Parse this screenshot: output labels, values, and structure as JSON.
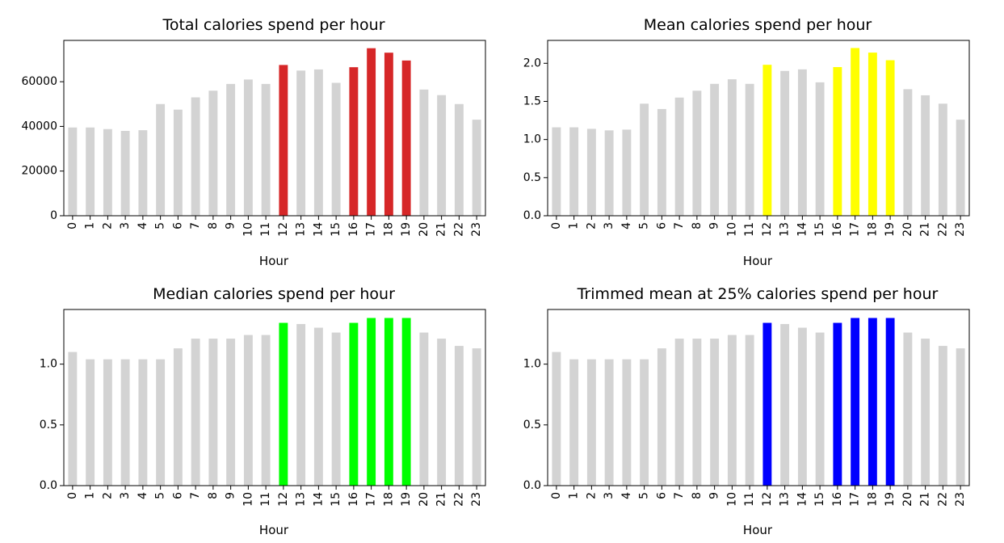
{
  "chart_data": [
    {
      "type": "bar",
      "title": "Total calories spend per hour",
      "xlabel": "Hour",
      "ylabel": "",
      "categories": [
        "0",
        "1",
        "2",
        "3",
        "4",
        "5",
        "6",
        "7",
        "8",
        "9",
        "10",
        "11",
        "12",
        "13",
        "14",
        "15",
        "16",
        "17",
        "18",
        "19",
        "20",
        "21",
        "22",
        "23"
      ],
      "values": [
        39500,
        39500,
        38800,
        38000,
        38300,
        50000,
        47500,
        53000,
        56000,
        59000,
        61000,
        59000,
        67500,
        65000,
        65500,
        59500,
        66500,
        75000,
        73000,
        69500,
        56500,
        54000,
        50000,
        43000
      ],
      "highlight": [
        12,
        16,
        17,
        18,
        19
      ],
      "base_color": "#d3d3d3",
      "highlight_color": "#d62728",
      "ylim": [
        0,
        78500
      ],
      "yticks": [
        0,
        20000,
        40000,
        60000
      ],
      "ytick_labels": [
        "0",
        "20000",
        "40000",
        "60000"
      ]
    },
    {
      "type": "bar",
      "title": "Mean calories spend per hour",
      "xlabel": "Hour",
      "ylabel": "",
      "categories": [
        "0",
        "1",
        "2",
        "3",
        "4",
        "5",
        "6",
        "7",
        "8",
        "9",
        "10",
        "11",
        "12",
        "13",
        "14",
        "15",
        "16",
        "17",
        "18",
        "19",
        "20",
        "21",
        "22",
        "23"
      ],
      "values": [
        1.16,
        1.16,
        1.14,
        1.12,
        1.13,
        1.47,
        1.4,
        1.55,
        1.64,
        1.73,
        1.79,
        1.73,
        1.98,
        1.9,
        1.92,
        1.75,
        1.95,
        2.2,
        2.14,
        2.04,
        1.66,
        1.58,
        1.47,
        1.26
      ],
      "highlight": [
        12,
        16,
        17,
        18,
        19
      ],
      "base_color": "#d3d3d3",
      "highlight_color": "#ffff00",
      "ylim": [
        0,
        2.3
      ],
      "yticks": [
        0,
        0.5,
        1.0,
        1.5,
        2.0
      ],
      "ytick_labels": [
        "0.0",
        "0.5",
        "1.0",
        "1.5",
        "2.0"
      ]
    },
    {
      "type": "bar",
      "title": "Median calories spend per hour",
      "xlabel": "Hour",
      "ylabel": "",
      "categories": [
        "0",
        "1",
        "2",
        "3",
        "4",
        "5",
        "6",
        "7",
        "8",
        "9",
        "10",
        "11",
        "12",
        "13",
        "14",
        "15",
        "16",
        "17",
        "18",
        "19",
        "20",
        "21",
        "22",
        "23"
      ],
      "values": [
        1.1,
        1.04,
        1.04,
        1.04,
        1.04,
        1.04,
        1.13,
        1.21,
        1.21,
        1.21,
        1.24,
        1.24,
        1.34,
        1.33,
        1.3,
        1.26,
        1.34,
        1.38,
        1.38,
        1.38,
        1.26,
        1.21,
        1.15,
        1.13
      ],
      "highlight": [
        12,
        16,
        17,
        18,
        19
      ],
      "base_color": "#d3d3d3",
      "highlight_color": "#00ff00",
      "ylim": [
        0,
        1.45
      ],
      "yticks": [
        0,
        0.5,
        1.0
      ],
      "ytick_labels": [
        "0.0",
        "0.5",
        "1.0"
      ]
    },
    {
      "type": "bar",
      "title": "Trimmed mean at 25% calories spend per hour",
      "xlabel": "Hour",
      "ylabel": "",
      "categories": [
        "0",
        "1",
        "2",
        "3",
        "4",
        "5",
        "6",
        "7",
        "8",
        "9",
        "10",
        "11",
        "12",
        "13",
        "14",
        "15",
        "16",
        "17",
        "18",
        "19",
        "20",
        "21",
        "22",
        "23"
      ],
      "values": [
        1.1,
        1.04,
        1.04,
        1.04,
        1.04,
        1.04,
        1.13,
        1.21,
        1.21,
        1.21,
        1.24,
        1.24,
        1.34,
        1.33,
        1.3,
        1.26,
        1.34,
        1.38,
        1.38,
        1.38,
        1.26,
        1.21,
        1.15,
        1.13
      ],
      "highlight": [
        12,
        16,
        17,
        18,
        19
      ],
      "base_color": "#d3d3d3",
      "highlight_color": "#0000ff",
      "ylim": [
        0,
        1.45
      ],
      "yticks": [
        0,
        0.5,
        1.0
      ],
      "ytick_labels": [
        "0.0",
        "0.5",
        "1.0"
      ]
    }
  ]
}
